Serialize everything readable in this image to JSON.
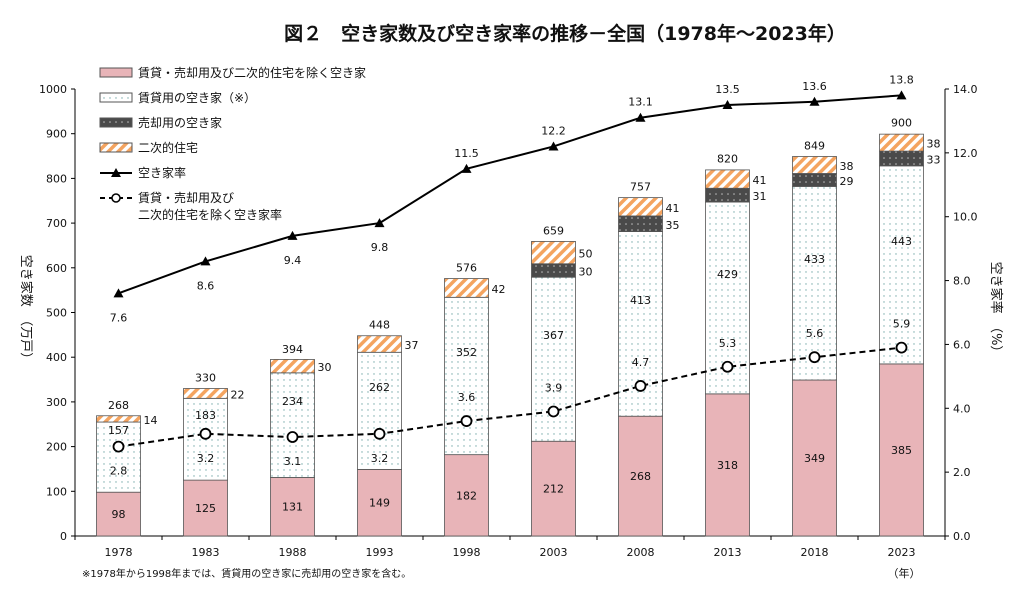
{
  "chart_data": {
    "type": "bar",
    "title": "図２　空き家数及び空き家率の推移－全国（1978年～2023年）",
    "ylabel": "空き家数　（万戸）",
    "y2label": "空き家率　（%）",
    "xunit": "（年）",
    "footnote": "※1978年から1998年までは、賃貸用の空き家に売却用の空き家を含む。",
    "ylim": [
      0,
      1000
    ],
    "yticks": [
      0,
      100,
      200,
      300,
      400,
      500,
      600,
      700,
      800,
      900,
      1000
    ],
    "y2lim": [
      0,
      14
    ],
    "y2ticks": [
      "0.0",
      "2.0",
      "4.0",
      "6.0",
      "8.0",
      "10.0",
      "12.0",
      "14.0"
    ],
    "categories": [
      "1978",
      "1983",
      "1988",
      "1993",
      "1998",
      "2003",
      "2008",
      "2013",
      "2018",
      "2023"
    ],
    "stacked": true,
    "series": [
      {
        "name": "賃貸・売却用及び二次的住宅を除く空き家",
        "kind": "bar",
        "color": "#e8b4b8",
        "values": [
          98,
          125,
          131,
          149,
          182,
          212,
          268,
          318,
          349,
          385
        ]
      },
      {
        "name": "賃貸用の空き家（※）",
        "kind": "bar",
        "color": "#ffffff",
        "pattern": "dots",
        "values": [
          157,
          183,
          234,
          262,
          352,
          367,
          413,
          429,
          433,
          443
        ]
      },
      {
        "name": "売却用の空き家",
        "kind": "bar",
        "color": "#4a4a4a",
        "pattern": "dots",
        "values": [
          null,
          null,
          null,
          null,
          null,
          30,
          35,
          31,
          29,
          33
        ]
      },
      {
        "name": "二次的住宅",
        "kind": "bar",
        "color": "#f4a460",
        "pattern": "diagonal-hatch",
        "values": [
          14,
          22,
          30,
          37,
          42,
          50,
          41,
          41,
          38,
          38
        ]
      },
      {
        "name": "空き家率",
        "kind": "line",
        "axis": "right",
        "marker": "triangle",
        "values": [
          7.6,
          8.6,
          9.4,
          9.8,
          11.5,
          12.2,
          13.1,
          13.5,
          13.6,
          13.8
        ],
        "labels": [
          "7.6",
          "8.6",
          "9.4",
          "9.8",
          "11.5",
          "12.2",
          "13.1",
          "13.5",
          "13.6",
          "13.8"
        ]
      },
      {
        "name": "賃貸・売却用及び二次的住宅を除く空き家率",
        "legend_lines": [
          "賃貸・売却用及び",
          "二次的住宅を除く空き家率"
        ],
        "kind": "line",
        "axis": "right",
        "marker": "open-circle",
        "dash": true,
        "values": [
          2.8,
          3.2,
          3.1,
          3.2,
          3.6,
          3.9,
          4.7,
          5.3,
          5.6,
          5.9
        ],
        "labels": [
          "2.8",
          "3.2",
          "3.1",
          "3.2",
          "3.6",
          "3.9",
          "4.7",
          "5.3",
          "5.6",
          "5.9"
        ]
      }
    ],
    "totals": [
      268,
      330,
      394,
      448,
      576,
      659,
      757,
      820,
      849,
      900
    ],
    "legend_position": "top-left",
    "grid": false
  }
}
